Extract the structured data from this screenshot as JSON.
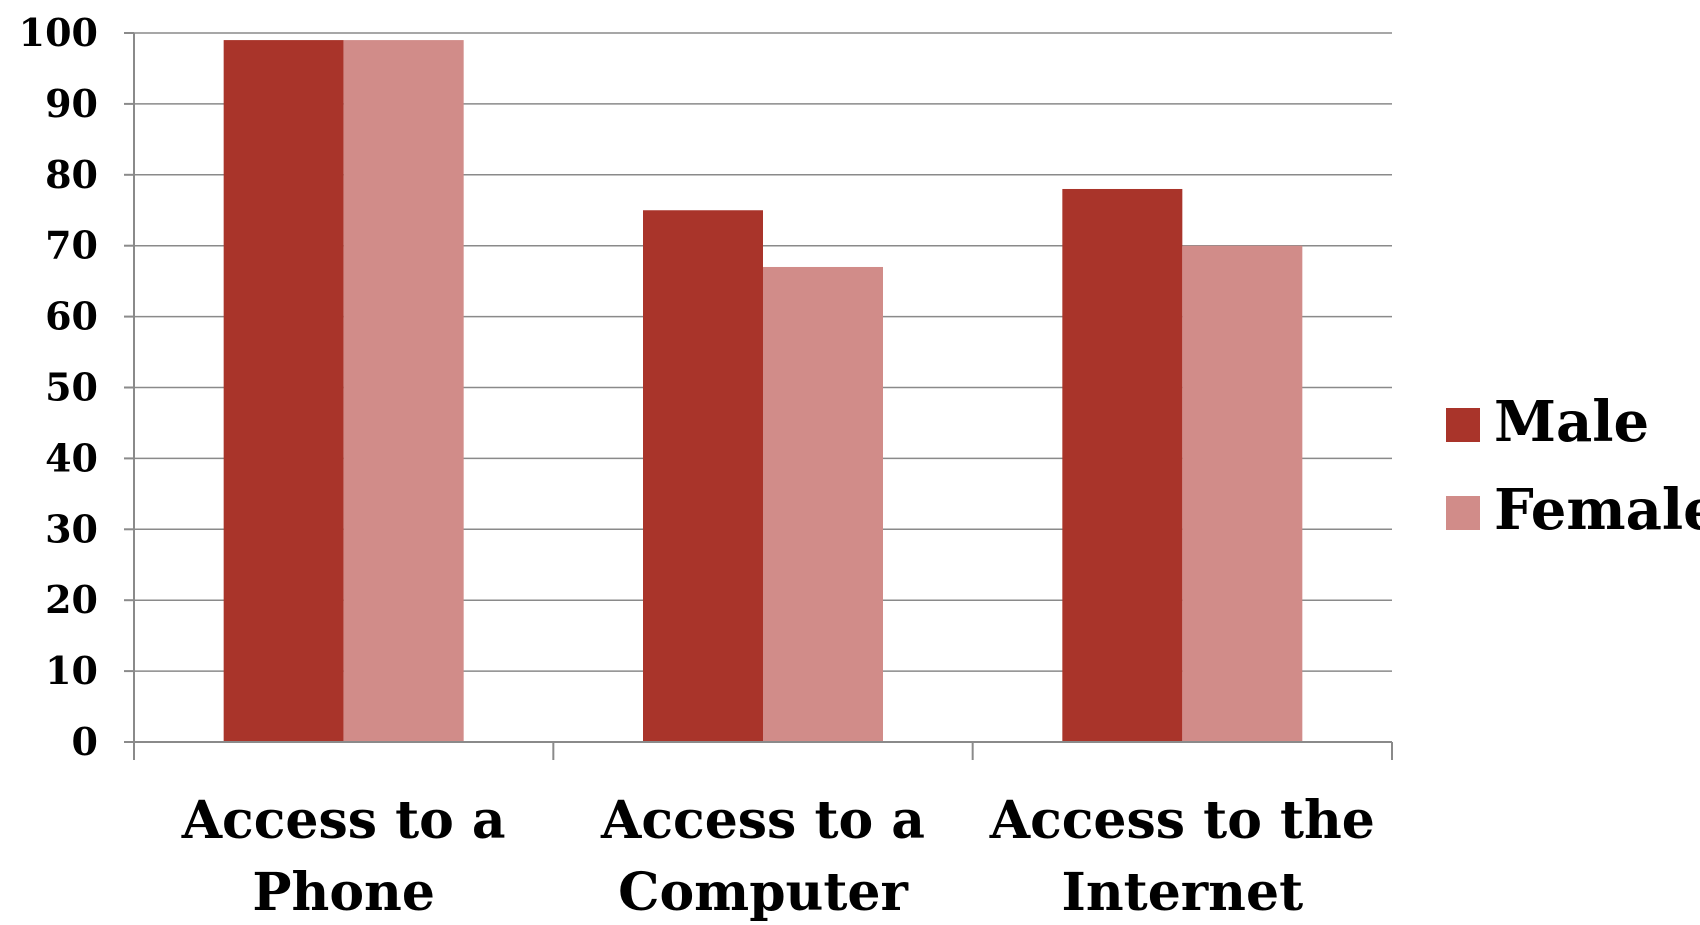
{
  "chart_data": {
    "type": "bar",
    "categories": [
      [
        "Access to a",
        "Phone"
      ],
      [
        "Access to a",
        "Computer"
      ],
      [
        "Access to the",
        "Internet"
      ]
    ],
    "series": [
      {
        "name": "Male",
        "values": [
          99,
          75,
          78
        ],
        "color": "#a9342a"
      },
      {
        "name": "Female",
        "values": [
          99,
          67,
          70
        ],
        "color": "#d18c89"
      }
    ],
    "ylim": [
      0,
      100
    ],
    "yticks": [
      "0",
      "10",
      "20",
      "30",
      "40",
      "50",
      "60",
      "70",
      "80",
      "90",
      "100"
    ],
    "grid": true,
    "legend": "right"
  }
}
